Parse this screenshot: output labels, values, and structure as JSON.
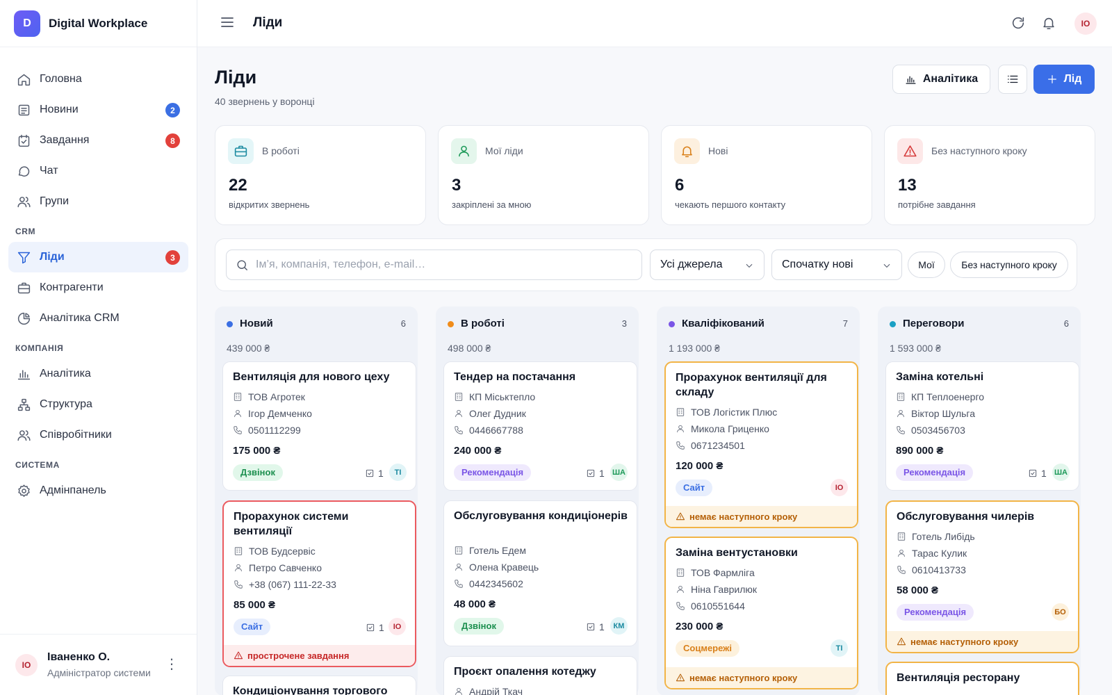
{
  "app": {
    "logo_letter": "D",
    "name": "Digital Workplace"
  },
  "sidebar": {
    "items": [
      {
        "label": "Головна",
        "icon": "home-icon"
      },
      {
        "label": "Новини",
        "icon": "newspaper-icon",
        "badge": "2"
      },
      {
        "label": "Завдання",
        "icon": "task-icon",
        "badge": "8"
      },
      {
        "label": "Чат",
        "icon": "chat-icon"
      },
      {
        "label": "Групи",
        "icon": "users-icon"
      }
    ],
    "crm_title": "CRM",
    "crm_items": [
      {
        "label": "Ліди",
        "icon": "filter-icon",
        "badge": "3",
        "active": true
      },
      {
        "label": "Контрагенти",
        "icon": "briefcase-icon"
      },
      {
        "label": "Аналітика CRM",
        "icon": "pie-chart-icon"
      }
    ],
    "company_title": "КОМПАНІЯ",
    "company_items": [
      {
        "label": "Аналітика",
        "icon": "bar-chart-icon"
      },
      {
        "label": "Структура",
        "icon": "org-structure-icon"
      },
      {
        "label": "Співробітники",
        "icon": "users-icon"
      }
    ],
    "system_title": "СИСТЕМА",
    "system_items": [
      {
        "label": "Адмінпанель",
        "icon": "gear-icon"
      }
    ],
    "user": {
      "initials": "ІО",
      "name": "Іваненко О.",
      "role": "Адміністратор системи"
    }
  },
  "topbar": {
    "title": "Ліди",
    "avatar": "ІО"
  },
  "page": {
    "title": "Ліди",
    "subtitle": "40 звернень у воронці",
    "analytics_button": "Аналітика",
    "add_button": "Лід"
  },
  "stats": [
    {
      "label": "В роботі",
      "value": "22",
      "sub": "відкритих звернень",
      "icon": "briefcase-icon"
    },
    {
      "label": "Мої ліди",
      "value": "3",
      "sub": "закріплені за мною",
      "icon": "user-icon"
    },
    {
      "label": "Нові",
      "value": "6",
      "sub": "чекають першого контакту",
      "icon": "bell-icon"
    },
    {
      "label": "Без наступного кроку",
      "value": "13",
      "sub": "потрібне завдання",
      "icon": "warning-icon"
    }
  ],
  "filters": {
    "search_placeholder": "Ім’я, компанія, телефон, e-mail…",
    "source_select": "Усі джерела",
    "sort_select": "Спочатку нові",
    "chip_mine": "Мої",
    "chip_no_next_step": "Без наступного кроку"
  },
  "colors": {
    "new": "#3b6fe3",
    "in_work": "#f08c1a",
    "qualified": "#7a55e6",
    "negotiation": "#1aa0c4",
    "accent": "#3a6ee8"
  },
  "board": {
    "columns": [
      {
        "name": "Новий",
        "count": "6",
        "sum": "439 000 ₴",
        "cards": [
          {
            "title": "Вентиляція для нового цеху",
            "company": "ТОВ Агротек",
            "contact": "Ігор Демченко",
            "phone": "0501112299",
            "amount": "175 000 ₴",
            "tag": "Дзвінок",
            "tasks": "1",
            "owner": "ТІ"
          },
          {
            "title": "Прорахунок системи вентиляції",
            "company": "ТОВ Будсервіс",
            "contact": "Петро Савченко",
            "phone": "+38 (067) 111-22-33",
            "amount": "85 000 ₴",
            "tag": "Сайт",
            "tasks": "1",
            "owner": "ІО",
            "alert": "прострочене завдання"
          },
          {
            "title": "Кондиціонування торгового"
          }
        ]
      },
      {
        "name": "В роботі",
        "count": "3",
        "sum": "498 000 ₴",
        "cards": [
          {
            "title": "Тендер на постачання",
            "company": "КП Міськтепло",
            "contact": "Олег Дудник",
            "phone": "0446667788",
            "amount": "240 000 ₴",
            "tag": "Рекомендація",
            "tasks": "1",
            "owner": "ША"
          },
          {
            "title": "Обслуговування кондиціонерів",
            "company": "Готель Едем",
            "contact": "Олена Кравець",
            "phone": "0442345602",
            "amount": "48 000 ₴",
            "tag": "Дзвінок",
            "tasks": "1",
            "owner": "КМ"
          },
          {
            "title": "Проєкт опалення котеджу",
            "contact": "Андрій Ткач"
          }
        ]
      },
      {
        "name": "Кваліфікований",
        "count": "7",
        "sum": "1 193 000 ₴",
        "cards": [
          {
            "title": "Прорахунок вентиляції для складу",
            "company": "ТОВ Логістик Плюс",
            "contact": "Микола Гриценко",
            "phone": "0671234501",
            "amount": "120 000 ₴",
            "tag": "Сайт",
            "owner": "ІО",
            "alert": "немає наступного кроку"
          },
          {
            "title": "Заміна вентустановки",
            "company": "ТОВ Фармліга",
            "contact": "Ніна Гаврилюк",
            "phone": "0610551644",
            "amount": "230 000 ₴",
            "tag": "Соцмережі",
            "owner": "ТІ",
            "alert": "немає наступного кроку"
          }
        ]
      },
      {
        "name": "Переговори",
        "count": "6",
        "sum": "1 593 000 ₴",
        "cards": [
          {
            "title": "Заміна котельні",
            "company": "КП Теплоенерго",
            "contact": "Віктор Шульга",
            "phone": "0503456703",
            "amount": "890 000 ₴",
            "tag": "Рекомендація",
            "tasks": "1",
            "owner": "ША"
          },
          {
            "title": "Обслуговування чилерів",
            "company": "Готель Либідь",
            "contact": "Тарас Кулик",
            "phone": "0610413733",
            "amount": "58 000 ₴",
            "tag": "Рекомендація",
            "owner": "БО",
            "alert": "немає наступного кроку"
          },
          {
            "title": "Вентиляція ресторану"
          }
        ]
      }
    ]
  }
}
